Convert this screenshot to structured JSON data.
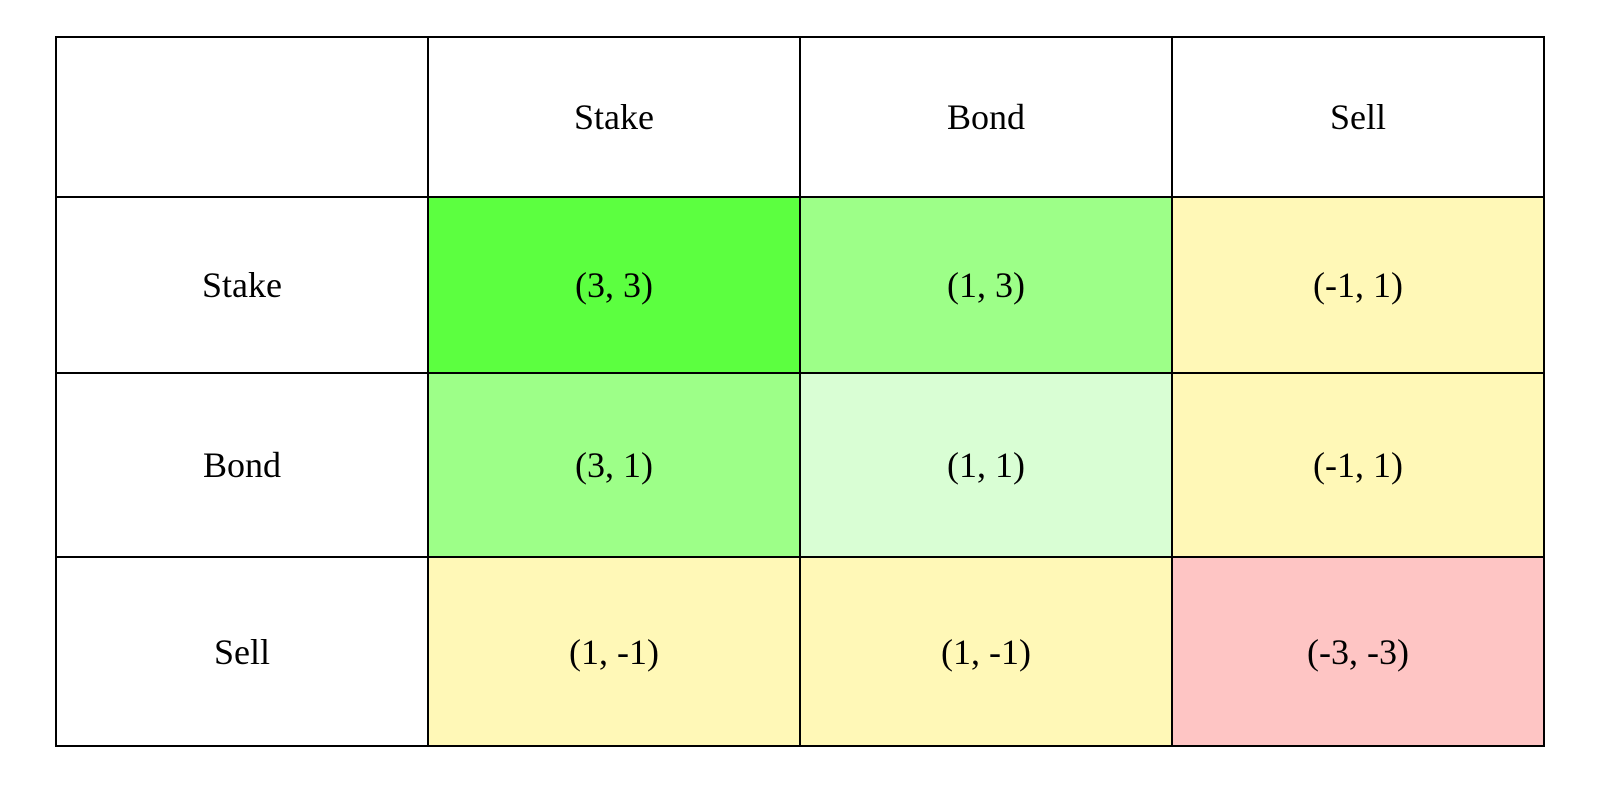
{
  "matrix": {
    "corner": "",
    "column_headers": [
      "Stake",
      "Bond",
      "Sell"
    ],
    "rows": [
      {
        "label": "Stake",
        "cells": [
          {
            "value": "(3, 3)",
            "color": "#5cff40"
          },
          {
            "value": "(1, 3)",
            "color": "#9dff88"
          },
          {
            "value": "(-1, 1)",
            "color": "#fff8b7"
          }
        ]
      },
      {
        "label": "Bond",
        "cells": [
          {
            "value": "(3, 1)",
            "color": "#9dff88"
          },
          {
            "value": "(1, 1)",
            "color": "#d9fed4"
          },
          {
            "value": "(-1, 1)",
            "color": "#fff8b7"
          }
        ]
      },
      {
        "label": "Sell",
        "cells": [
          {
            "value": "(1, -1)",
            "color": "#fff8b7"
          },
          {
            "value": "(1, -1)",
            "color": "#fff8b7"
          },
          {
            "value": "(-3, -3)",
            "color": "#fec5c4"
          }
        ]
      }
    ]
  }
}
